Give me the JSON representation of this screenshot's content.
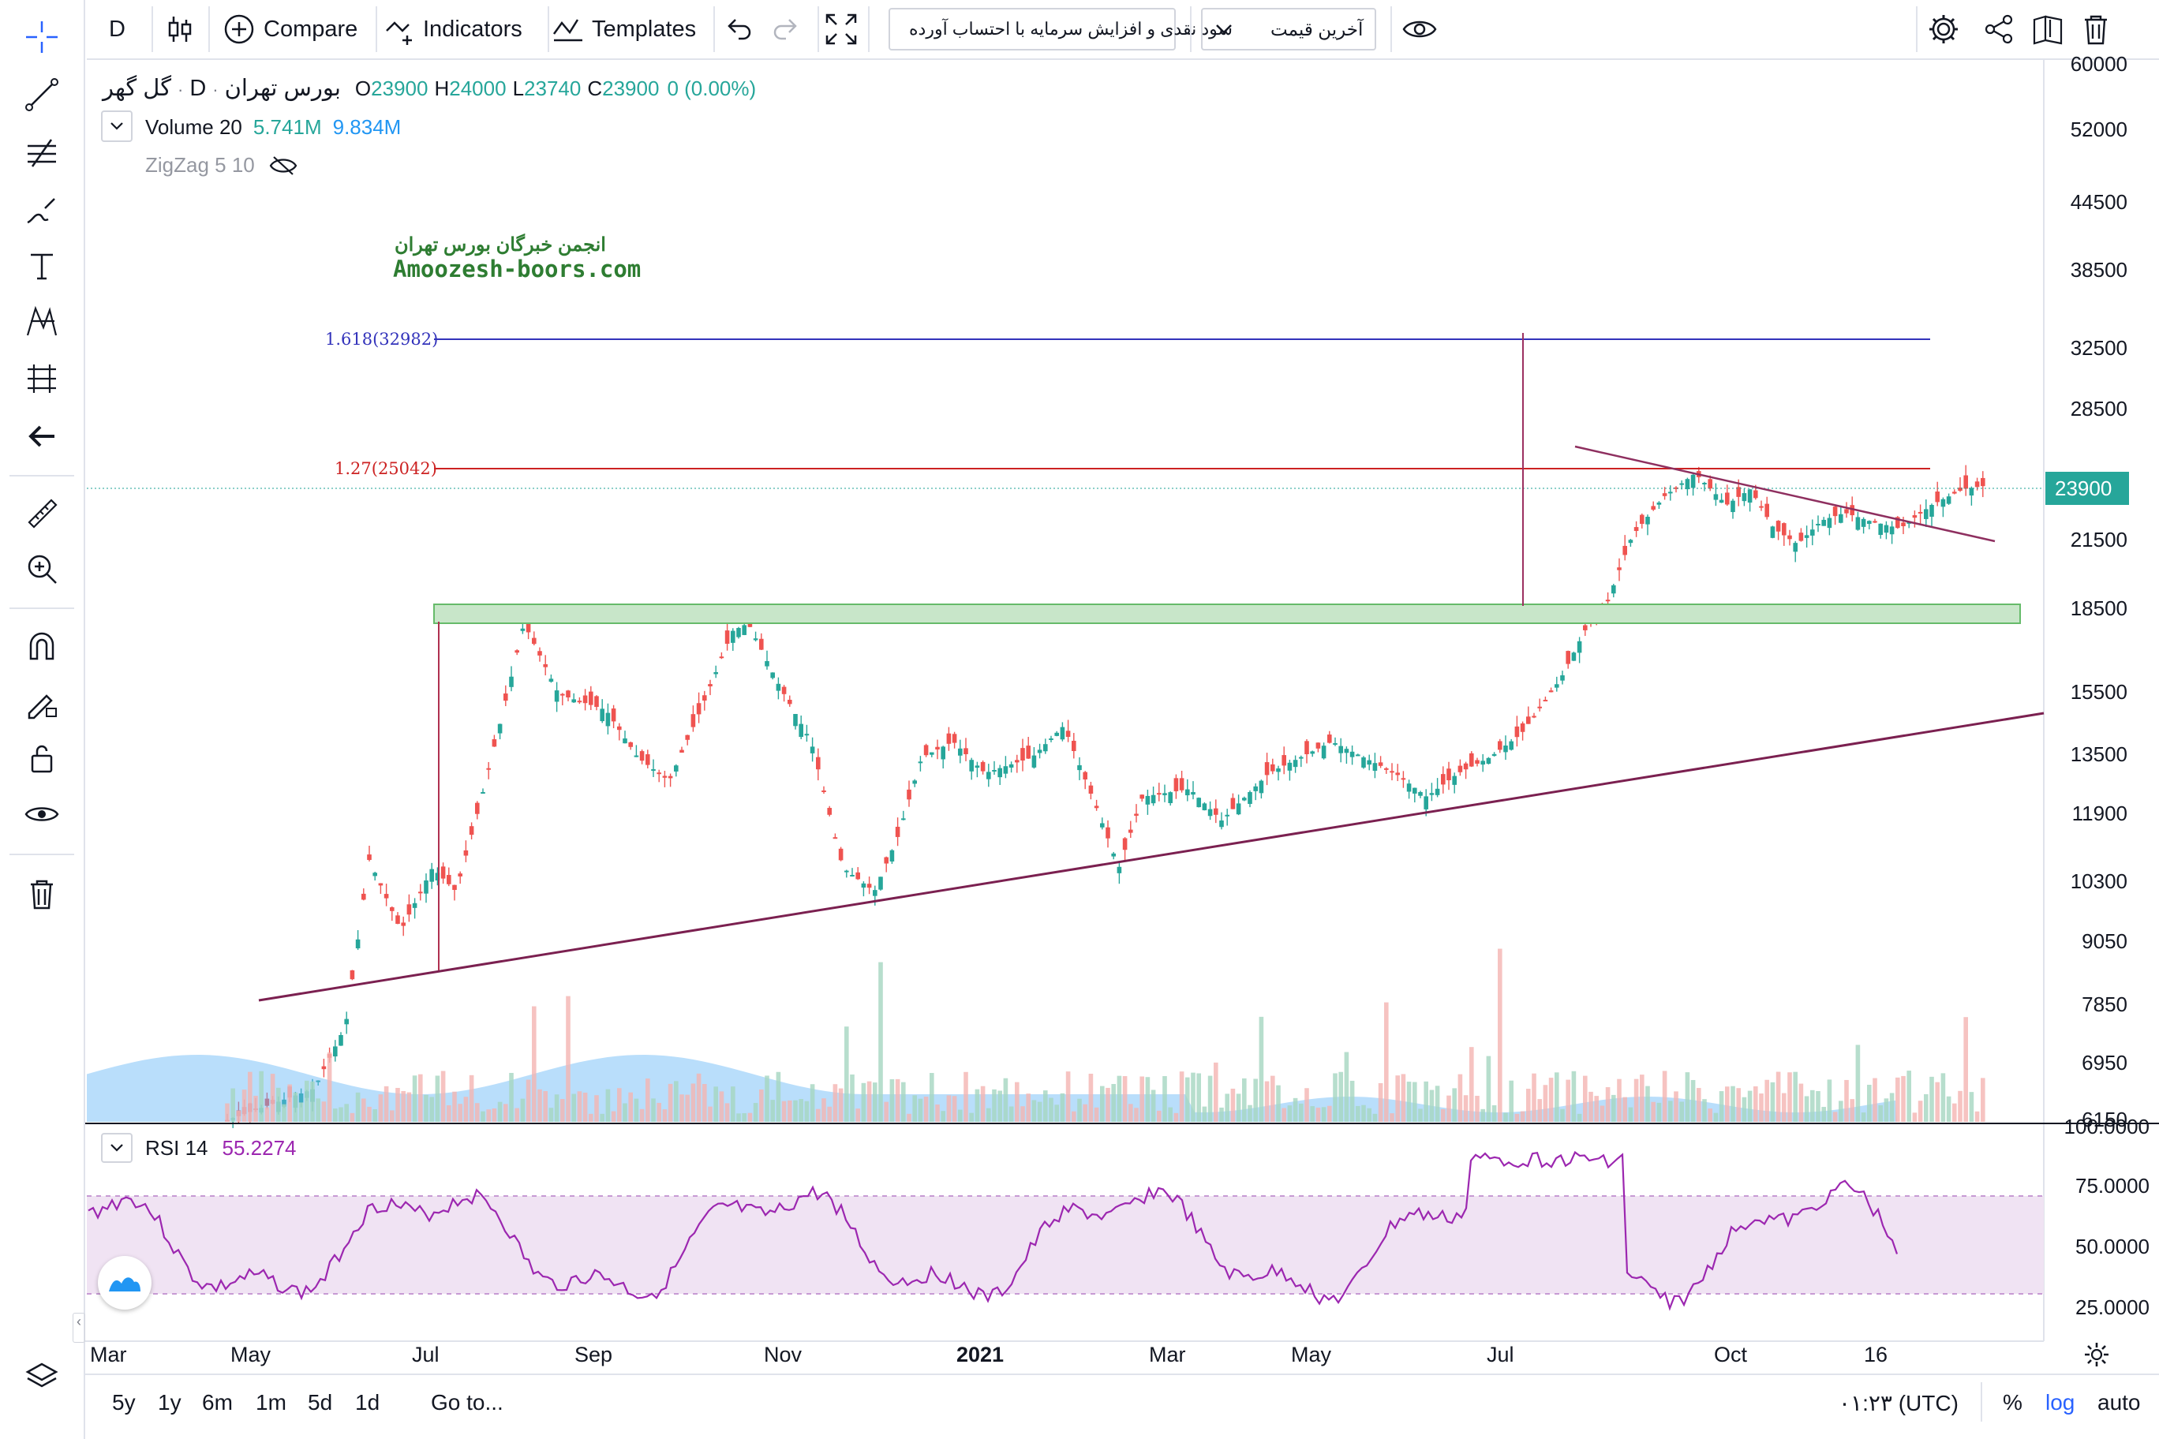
{
  "toolbar": {
    "interval": "D",
    "compare": "Compare",
    "indicators": "Indicators",
    "templates": "Templates",
    "dividends_select": "سود نقدی و افزایش سرمایه با احتساب آورده",
    "price_type_select": "آخرین قیمت"
  },
  "legend": {
    "symbol": "گل گهر",
    "interval": "D",
    "exchange": "بورس تهران",
    "open_label": "O",
    "open": "23900",
    "high_label": "H",
    "high": "24000",
    "low_label": "L",
    "low": "23740",
    "close_label": "C",
    "close": "23900",
    "change": "0 (0.00%)",
    "volume_label": "Volume 20",
    "volume_value": "5.741M",
    "volume_ma": "9.834M",
    "zigzag": "ZigZag 5 10"
  },
  "watermark": {
    "line1": "انجمن خبرگان بورس تهران",
    "line2": "Amoozesh-boors.com"
  },
  "fib": {
    "level1": "1.618(32982)",
    "level2": "1.27(25042)"
  },
  "price_scale": [
    "60000",
    "52000",
    "44500",
    "38500",
    "32500",
    "28500",
    "21500",
    "18500",
    "15500",
    "13500",
    "11900",
    "10300",
    "9050",
    "7850",
    "6950",
    "6150"
  ],
  "last_price_label": "23900",
  "rsi": {
    "label": "RSI 14",
    "value": "55.2274",
    "scale": [
      "100.0000",
      "75.0000",
      "50.0000",
      "25.0000"
    ]
  },
  "time_scale": [
    "Mar",
    "May",
    "Jul",
    "Sep",
    "Nov",
    "2021",
    "Mar",
    "May",
    "Jul",
    "Oct",
    "16"
  ],
  "bottom_bar": {
    "ranges": [
      "5y",
      "1y",
      "6m",
      "1m",
      "5d",
      "1d"
    ],
    "goto": "Go to...",
    "time": "۰۱:۲۳ (UTC)",
    "percent": "%",
    "log": "log",
    "auto": "auto"
  },
  "colors": {
    "up": "#26a69a",
    "down": "#ef5350",
    "fib1": "#3333bb",
    "fib2": "#cc2222",
    "trendline": "#8e2f5f",
    "rsi_line": "#9c27b0",
    "rsi_band": "#f0e3f3",
    "accent": "#2962ff"
  }
}
